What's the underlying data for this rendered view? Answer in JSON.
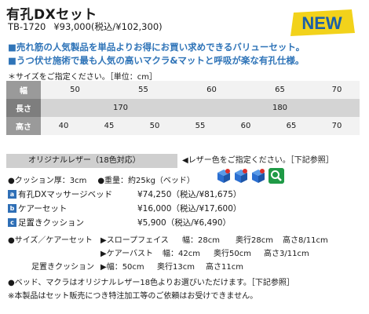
{
  "header": {
    "title": "有孔DXセット",
    "code": "TB-1720",
    "price": "¥93,000(税込/¥102,300)",
    "badge_text": "NEW"
  },
  "bullets": [
    "■売れ筋の人気製品を単品よりお得にお買い求めできるバリューセット。",
    "■うつ伏せ施術で最も人気の高いマクラ&マットと呼吸が楽な有孔仕様。"
  ],
  "size_caption": "＊サイズをご指定ください。［単位：cm］",
  "size_table": {
    "width_label": "幅",
    "widths": [
      "50",
      "55",
      "60",
      "65",
      "70"
    ],
    "length_label": "長さ",
    "lengths": [
      "170",
      "180"
    ],
    "height_label": "高さ",
    "heights": [
      "40",
      "45",
      "50",
      "55",
      "60",
      "65",
      "70"
    ]
  },
  "leather": {
    "label": "オリジナルレザー（18色対応）",
    "note": "◀レザー色をご指定ください。［下記参照］"
  },
  "specs": {
    "cushion": "●クッション厚：3cm",
    "weight": "●重量：約25kg（ベッド）"
  },
  "items": [
    {
      "badge": "a",
      "name": "有孔DXマッサージベッド",
      "price": "¥74,250（税込/¥81,675）"
    },
    {
      "badge": "b",
      "name": "ケアーセット",
      "price": "¥16,000（税込/¥17,600）"
    },
    {
      "badge": "c",
      "name": "足置きクッション",
      "price": "¥5,900（税込/¥6,490）"
    }
  ],
  "dimensions": {
    "label1": "●サイズ／ケアーセット",
    "slope_name": "▶スロープフェイス",
    "slope_w": "幅：28cm",
    "slope_d": "奥行28cm",
    "slope_h": "高さ8/11cm",
    "bust_name": "▶ケアーバスト",
    "bust_w": "幅：42cm",
    "bust_d": "奥行50cm",
    "bust_h": "高さ3/11cm",
    "label2": "足置きクッション",
    "foot_w": "▶幅：50cm",
    "foot_d": "奥行13cm",
    "foot_h": "高さ11cm"
  },
  "notes": [
    "●ベッド、マクラはオリジナルレザー18色よりお選びいただけます。［下記参照］",
    "※本製品はセット販売につき特注加工等のご依頼はお受けできません。"
  ],
  "colors": {
    "accent_blue": "#2f74b8",
    "badge_yellow": "#f2d21b",
    "badge_green": "#1f9a46",
    "swatch_blue": "#2b6fd1",
    "swatch_red": "#d9302c"
  },
  "icons": [
    "new-badge",
    "leather-swatch-icon",
    "search-icon"
  ]
}
